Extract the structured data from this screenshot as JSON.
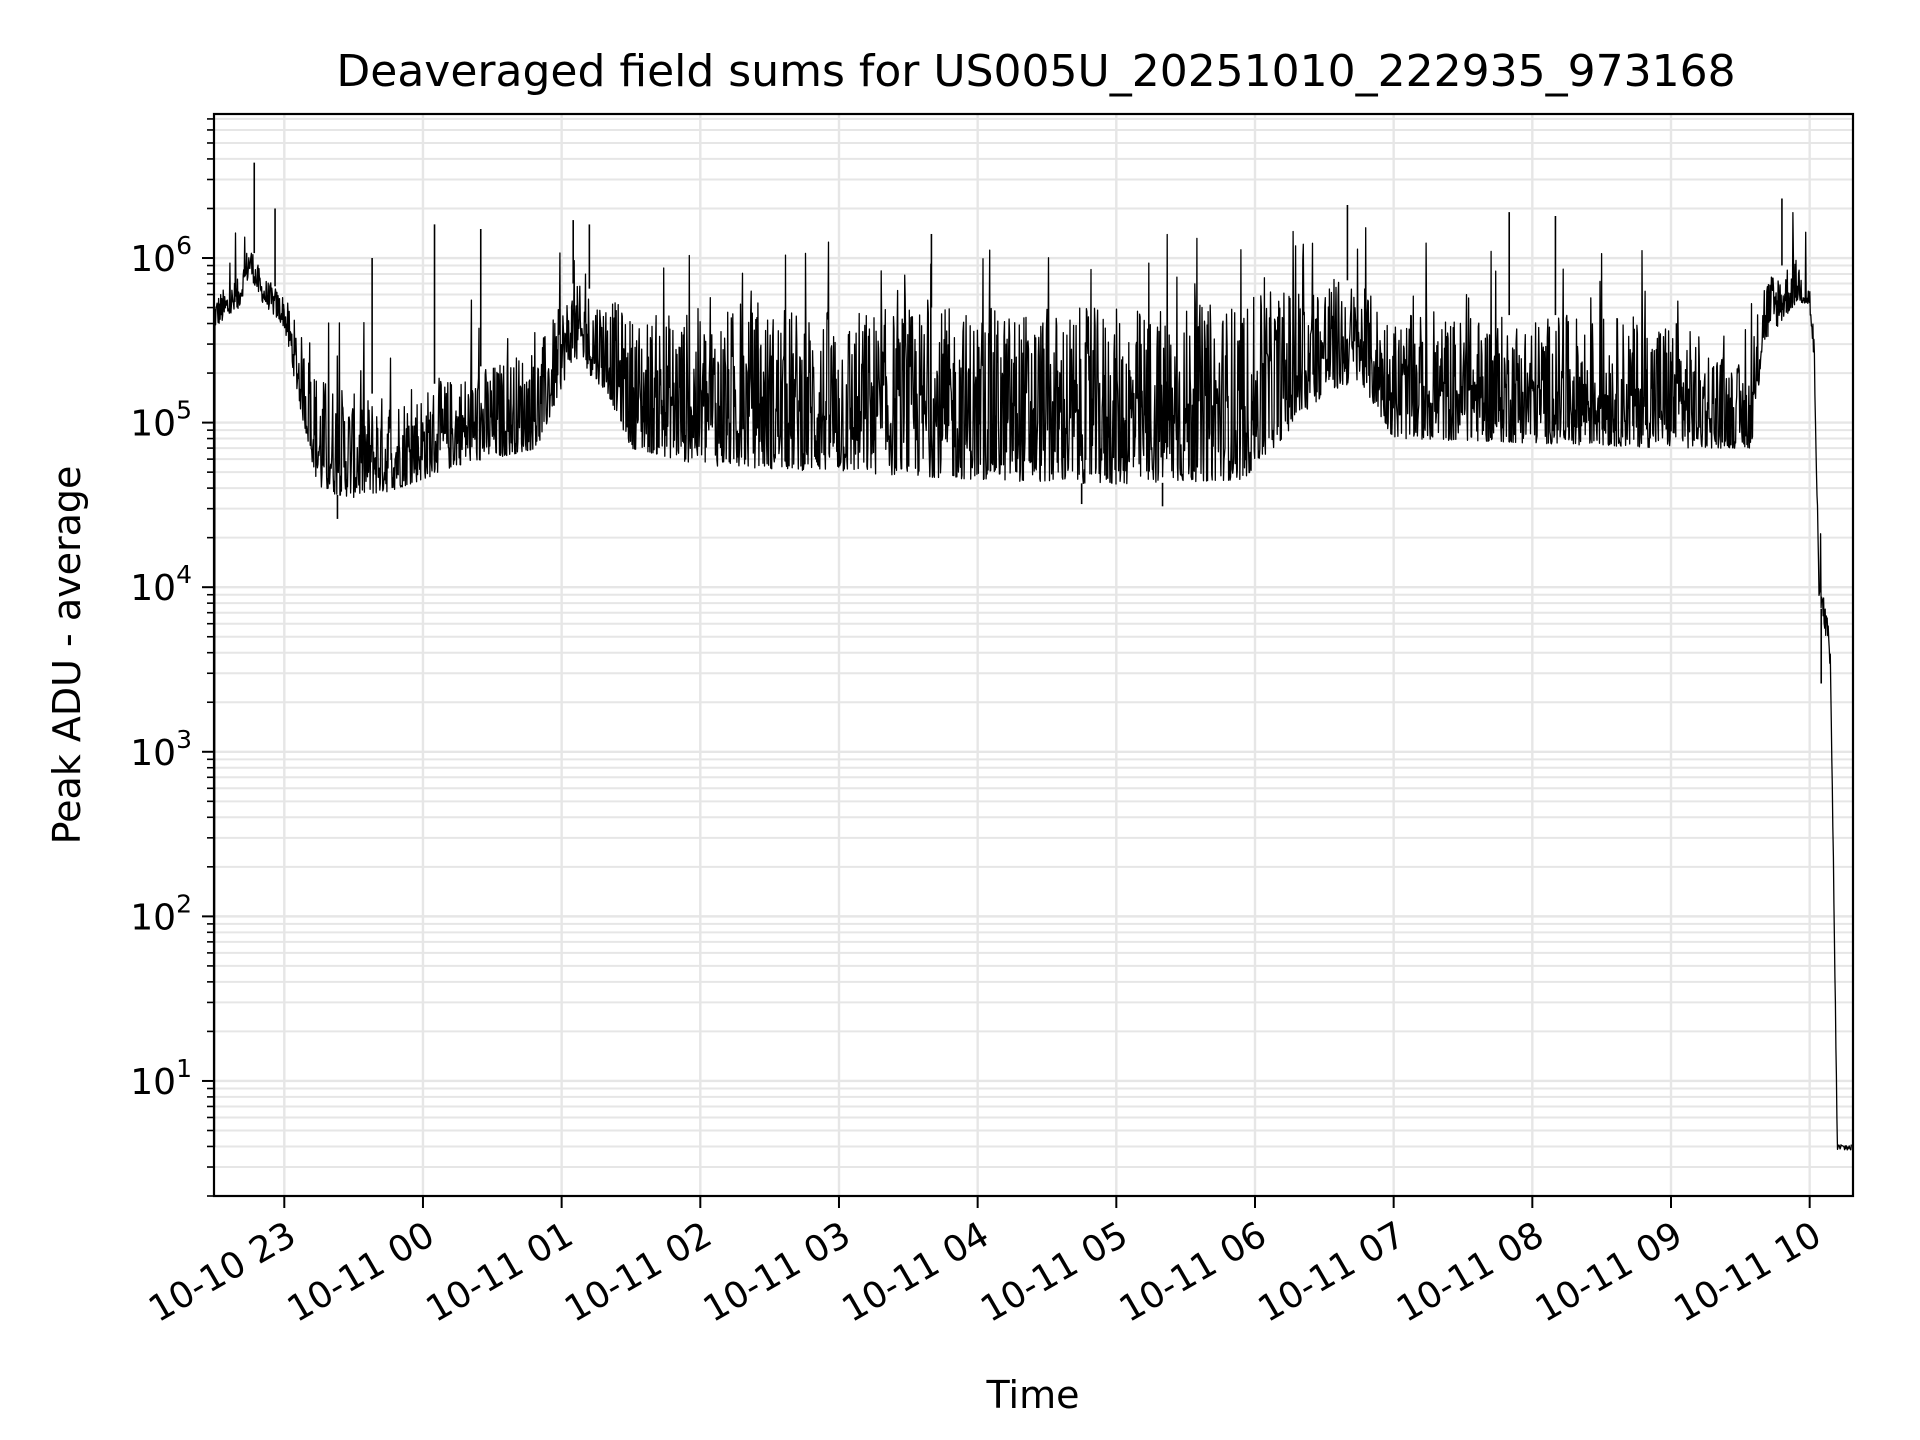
{
  "chart_data": {
    "type": "line",
    "title": "Deaveraged field sums for US005U_20251010_222935_973168",
    "xlabel": "Time",
    "ylabel": "Peak ADU - average",
    "yscale": "log",
    "ylim": [
      2.0,
      7500000
    ],
    "xlim": [
      "2025-10-10 22:29:35",
      "2025-10-11 10:18:45"
    ],
    "grid": true,
    "line_color": "#000000",
    "grid_color": "#e6e6e6",
    "x_ticks": [
      {
        "t": "2025-10-10 23:00",
        "label": "10-10 23"
      },
      {
        "t": "2025-10-11 00:00",
        "label": "10-11 00"
      },
      {
        "t": "2025-10-11 01:00",
        "label": "10-11 01"
      },
      {
        "t": "2025-10-11 02:00",
        "label": "10-11 02"
      },
      {
        "t": "2025-10-11 03:00",
        "label": "10-11 03"
      },
      {
        "t": "2025-10-11 04:00",
        "label": "10-11 04"
      },
      {
        "t": "2025-10-11 05:00",
        "label": "10-11 05"
      },
      {
        "t": "2025-10-11 06:00",
        "label": "10-11 06"
      },
      {
        "t": "2025-10-11 07:00",
        "label": "10-11 07"
      },
      {
        "t": "2025-10-11 08:00",
        "label": "10-11 08"
      },
      {
        "t": "2025-10-11 09:00",
        "label": "10-11 09"
      },
      {
        "t": "2025-10-11 10:00",
        "label": "10-11 10"
      }
    ],
    "y_ticks": [
      {
        "value": 10,
        "base": "10",
        "exp": "1"
      },
      {
        "value": 100,
        "base": "10",
        "exp": "2"
      },
      {
        "value": 1000,
        "base": "10",
        "exp": "3"
      },
      {
        "value": 10000,
        "base": "10",
        "exp": "4"
      },
      {
        "value": 100000,
        "base": "10",
        "exp": "5"
      },
      {
        "value": 1000000,
        "base": "10",
        "exp": "6"
      }
    ],
    "series": [
      {
        "envelope": [
          {
            "t": "2025-10-10 22:30",
            "low": 380000,
            "high": 600000
          },
          {
            "t": "2025-10-10 22:40",
            "low": 480000,
            "high": 750000
          },
          {
            "t": "2025-10-10 22:45",
            "low": 800000,
            "high": 1300000
          },
          {
            "t": "2025-10-10 22:50",
            "low": 550000,
            "high": 800000
          },
          {
            "t": "2025-10-10 23:00",
            "low": 380000,
            "high": 600000
          },
          {
            "t": "2025-10-10 23:07",
            "low": 120000,
            "high": 350000
          },
          {
            "t": "2025-10-10 23:15",
            "low": 38000,
            "high": 200000
          },
          {
            "t": "2025-10-10 23:30",
            "low": 35000,
            "high": 150000
          },
          {
            "t": "2025-10-10 23:45",
            "low": 38000,
            "high": 150000
          },
          {
            "t": "2025-10-11 00:00",
            "low": 45000,
            "high": 160000
          },
          {
            "t": "2025-10-11 00:15",
            "low": 55000,
            "high": 200000
          },
          {
            "t": "2025-10-11 00:30",
            "low": 60000,
            "high": 230000
          },
          {
            "t": "2025-10-11 00:50",
            "low": 70000,
            "high": 300000
          },
          {
            "t": "2025-10-11 01:05",
            "low": 250000,
            "high": 700000
          },
          {
            "t": "2025-10-11 01:20",
            "low": 150000,
            "high": 600000
          },
          {
            "t": "2025-10-11 01:30",
            "low": 70000,
            "high": 450000
          },
          {
            "t": "2025-10-11 02:00",
            "low": 55000,
            "high": 500000
          },
          {
            "t": "2025-10-11 03:00",
            "low": 50000,
            "high": 500000
          },
          {
            "t": "2025-10-11 04:00",
            "low": 45000,
            "high": 500000
          },
          {
            "t": "2025-10-11 05:00",
            "low": 42000,
            "high": 500000
          },
          {
            "t": "2025-10-11 05:55",
            "low": 45000,
            "high": 550000
          },
          {
            "t": "2025-10-11 06:30",
            "low": 150000,
            "high": 800000
          },
          {
            "t": "2025-10-11 06:45",
            "low": 180000,
            "high": 700000
          },
          {
            "t": "2025-10-11 07:00",
            "low": 80000,
            "high": 450000
          },
          {
            "t": "2025-10-11 08:00",
            "low": 75000,
            "high": 450000
          },
          {
            "t": "2025-10-11 09:00",
            "low": 70000,
            "high": 450000
          },
          {
            "t": "2025-10-11 09:35",
            "low": 70000,
            "high": 200000
          },
          {
            "t": "2025-10-11 09:40",
            "low": 300000,
            "high": 800000
          },
          {
            "t": "2025-10-11 09:55",
            "low": 550000,
            "high": 1000000
          },
          {
            "t": "2025-10-11 10:00",
            "low": 500000,
            "high": 700000
          },
          {
            "t": "2025-10-11 10:02",
            "low": 200000,
            "high": 350000
          },
          {
            "t": "2025-10-11 10:04",
            "low": 9000,
            "high": 11000
          },
          {
            "t": "2025-10-11 10:07",
            "low": 5000,
            "high": 8000
          },
          {
            "t": "2025-10-11 10:09",
            "low": 3000,
            "high": 4500
          },
          {
            "t": "2025-10-11 10:12",
            "low": 3.8,
            "high": 4.2
          },
          {
            "t": "2025-10-11 10:18",
            "low": 3.8,
            "high": 4.2
          }
        ],
        "spikes": [
          {
            "t": "2025-10-10 22:47",
            "value": 3800000
          },
          {
            "t": "2025-10-10 22:56",
            "value": 2000000
          },
          {
            "t": "2025-10-10 23:38",
            "value": 1000000
          },
          {
            "t": "2025-10-11 00:05",
            "value": 1600000
          },
          {
            "t": "2025-10-11 00:25",
            "value": 1500000
          },
          {
            "t": "2025-10-11 01:05",
            "value": 1700000
          },
          {
            "t": "2025-10-11 01:12",
            "value": 1600000
          },
          {
            "t": "2025-10-11 03:40",
            "value": 1400000
          },
          {
            "t": "2025-10-11 06:40",
            "value": 2100000
          },
          {
            "t": "2025-10-11 07:50",
            "value": 1900000
          },
          {
            "t": "2025-10-11 08:10",
            "value": 1800000
          },
          {
            "t": "2025-10-11 09:48",
            "value": 2300000
          }
        ],
        "dips": [
          {
            "t": "2025-10-10 23:23",
            "value": 26000
          },
          {
            "t": "2025-10-11 04:45",
            "value": 32000
          },
          {
            "t": "2025-10-11 05:20",
            "value": 31000
          },
          {
            "t": "2025-10-11 10:05",
            "value": 2600
          }
        ]
      }
    ]
  }
}
